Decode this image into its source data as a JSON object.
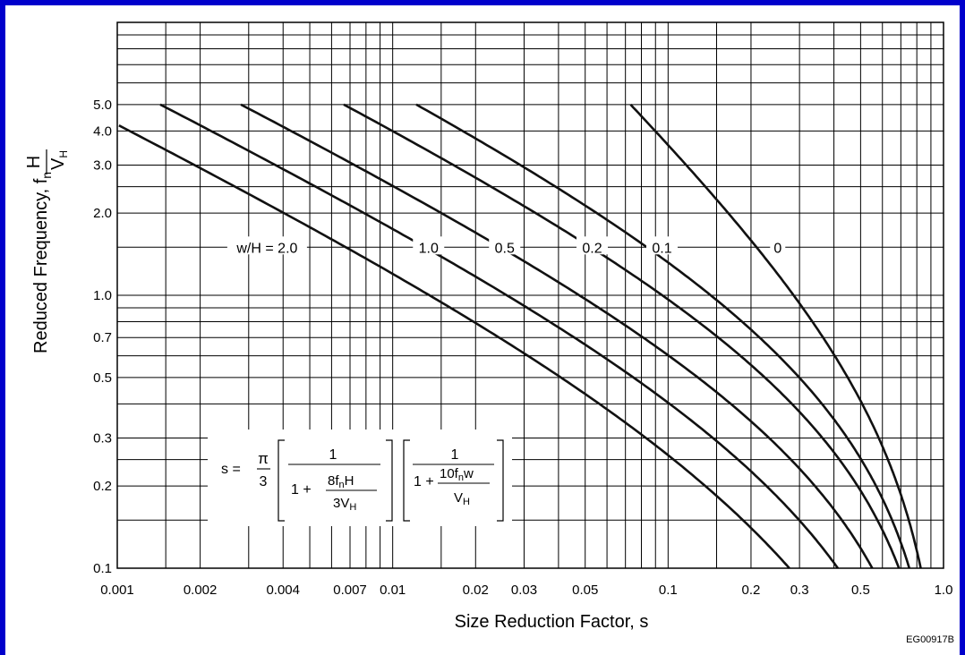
{
  "chart_data": {
    "type": "line",
    "xscale": "log",
    "yscale": "log",
    "xlim": [
      0.001,
      1.0
    ],
    "ylim": [
      0.1,
      10
    ],
    "grid": true,
    "xlabel": "Size Reduction Factor, s",
    "ylabel": "Reduced Frequency, f",
    "ylabel_sub": "n",
    "ylabel_frac_num": "H",
    "ylabel_frac_den": "V",
    "ylabel_frac_den_sub": "H",
    "x_ticks": [
      {
        "v": 0.001,
        "label": "0.001"
      },
      {
        "v": 0.002,
        "label": "0.002"
      },
      {
        "v": 0.004,
        "label": "0.004"
      },
      {
        "v": 0.007,
        "label": "0.007"
      },
      {
        "v": 0.01,
        "label": "0.01"
      },
      {
        "v": 0.02,
        "label": "0.02"
      },
      {
        "v": 0.03,
        "label": "0.03"
      },
      {
        "v": 0.05,
        "label": "0.05"
      },
      {
        "v": 0.1,
        "label": "0.1"
      },
      {
        "v": 0.2,
        "label": "0.2"
      },
      {
        "v": 0.3,
        "label": "0.3"
      },
      {
        "v": 0.5,
        "label": "0.5"
      },
      {
        "v": 1.0,
        "label": "1.0"
      }
    ],
    "y_ticks": [
      {
        "v": 0.1,
        "label": "0.1"
      },
      {
        "v": 0.2,
        "label": "0.2"
      },
      {
        "v": 0.3,
        "label": "0.3"
      },
      {
        "v": 0.5,
        "label": "0.5"
      },
      {
        "v": 0.7,
        "label": "0.7"
      },
      {
        "v": 1.0,
        "label": "1.0"
      },
      {
        "v": 2.0,
        "label": "2.0"
      },
      {
        "v": 3.0,
        "label": "3.0"
      },
      {
        "v": 4.0,
        "label": "4.0"
      },
      {
        "v": 5.0,
        "label": "5.0"
      }
    ],
    "x_grid": [
      0.001,
      0.0015,
      0.002,
      0.003,
      0.004,
      0.005,
      0.006,
      0.007,
      0.008,
      0.009,
      0.01,
      0.015,
      0.02,
      0.03,
      0.04,
      0.05,
      0.06,
      0.07,
      0.08,
      0.09,
      0.1,
      0.15,
      0.2,
      0.3,
      0.4,
      0.5,
      0.6,
      0.7,
      0.8,
      0.9,
      1.0
    ],
    "y_grid": [
      0.1,
      0.15,
      0.2,
      0.25,
      0.3,
      0.4,
      0.5,
      0.6,
      0.7,
      0.8,
      0.9,
      1.0,
      1.5,
      2.0,
      2.5,
      3.0,
      4.0,
      5.0,
      6.0,
      7.0,
      8.0,
      9.0,
      10.0
    ],
    "series": [
      {
        "name": "w/H = 2.0",
        "label_text": "w/H = 2.0",
        "label_pos": [
          0.0035,
          1.5
        ],
        "wH": 2.0,
        "fmax": 4.5
      },
      {
        "name": "1.0",
        "label_text": "1.0",
        "label_pos": [
          0.0135,
          1.5
        ],
        "wH": 1.0,
        "fmax": 5.0
      },
      {
        "name": "0.5",
        "label_text": "0.5",
        "label_pos": [
          0.0255,
          1.5
        ],
        "wH": 0.5,
        "fmax": 5.0
      },
      {
        "name": "0.2",
        "label_text": "0.2",
        "label_pos": [
          0.053,
          1.5
        ],
        "wH": 0.2,
        "fmax": 5.0
      },
      {
        "name": "0.1",
        "label_text": "0.1",
        "label_pos": [
          0.095,
          1.5
        ],
        "wH": 0.1,
        "fmax": 5.0
      },
      {
        "name": "0",
        "label_text": "0",
        "label_pos": [
          0.25,
          1.5
        ],
        "wH": 0.0,
        "fmax": 5.0
      }
    ],
    "formula": {
      "s_eq": "s =",
      "pi": "π",
      "three": "3",
      "one": "1",
      "one_plus": "1 +",
      "t1_num": "8f",
      "t1_num_sub": "n",
      "t1_num_tail": "H",
      "t1_den": "3V",
      "t1_den_sub": "H",
      "t2_num": "10f",
      "t2_num_sub": "n",
      "t2_num_tail": "w",
      "t2_den": "V",
      "t2_den_sub": "H"
    },
    "code": "EG00917B"
  }
}
